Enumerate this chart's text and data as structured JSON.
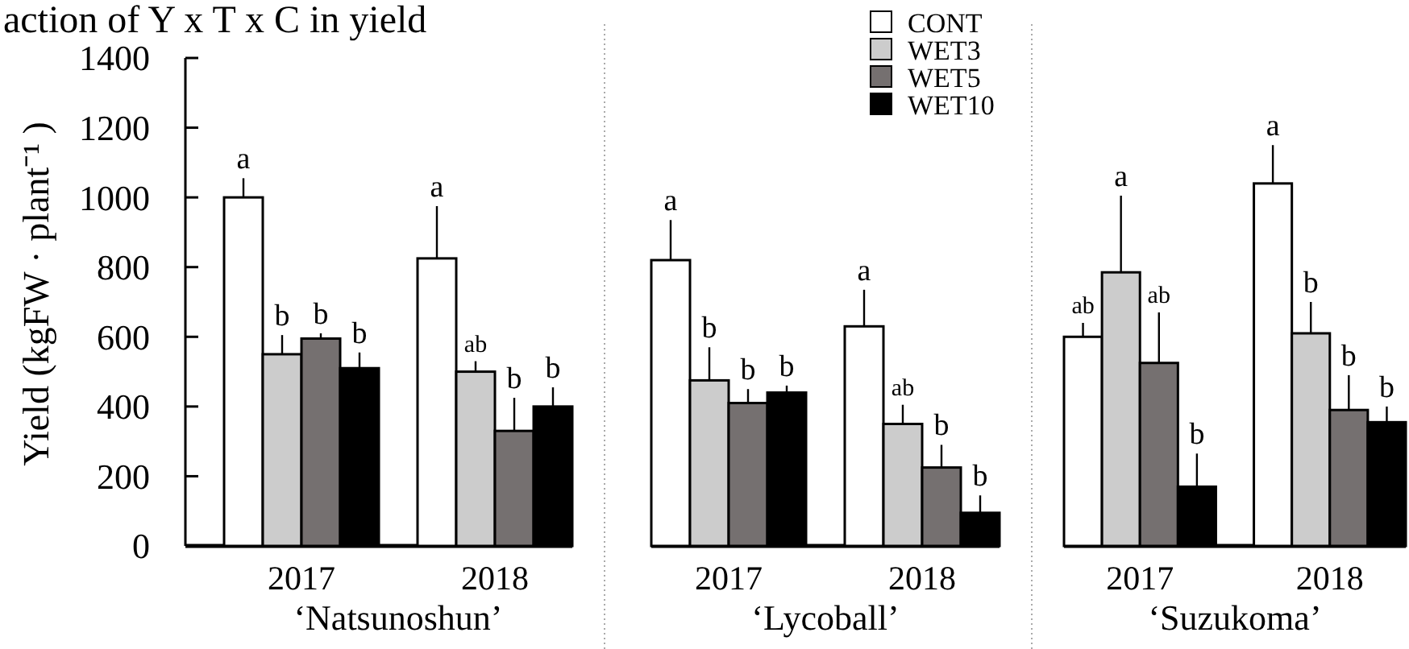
{
  "chart_data": [
    {
      "type": "bar",
      "title": "action of Y x T x C in yield",
      "ylabel": "Yield (kgFW · plant⁻¹ )",
      "xlabel": "‘Natsunoshun’",
      "categories": [
        "2017",
        "2018"
      ],
      "ylim": [
        0,
        1400
      ],
      "yticks": [
        0,
        200,
        400,
        600,
        800,
        1000,
        1200,
        1400
      ],
      "series": [
        {
          "color": "#ffffff",
          "values": [
            1000,
            825
          ],
          "errors": [
            [
              1000,
              1055
            ],
            [
              825,
              975
            ]
          ],
          "value_labels": [
            "a",
            "a"
          ]
        },
        {
          "color": "#cccccc",
          "values": [
            550,
            500
          ],
          "errors": [
            [
              550,
              605
            ],
            [
              500,
              530
            ]
          ],
          "value_labels": [
            "b",
            "ab"
          ]
        },
        {
          "color": "#757070",
          "values": [
            595,
            330
          ],
          "errors": [
            [
              595,
              610
            ],
            [
              330,
              425
            ]
          ],
          "value_labels": [
            "b",
            "b"
          ]
        },
        {
          "color": "#000000",
          "values": [
            510,
            400
          ],
          "errors": [
            [
              510,
              555
            ],
            [
              400,
              455
            ]
          ],
          "value_labels": [
            "b",
            "b"
          ]
        }
      ]
    },
    {
      "type": "bar",
      "xlabel": "‘Lycoball’",
      "categories": [
        "2017",
        "2018"
      ],
      "ylim": [
        0,
        1400
      ],
      "tick_labels": "x",
      "legend": "top right",
      "series": [
        {
          "name": "CONT",
          "color": "#ffffff",
          "values": [
            820,
            630
          ],
          "errors": [
            [
              820,
              935
            ],
            [
              630,
              735
            ]
          ],
          "value_labels": [
            "a",
            "a"
          ]
        },
        {
          "name": "WET3",
          "color": "#cccccc",
          "values": [
            475,
            350
          ],
          "errors": [
            [
              475,
              570
            ],
            [
              350,
              405
            ]
          ],
          "value_labels": [
            "b",
            "ab"
          ]
        },
        {
          "name": "WET5",
          "color": "#757070",
          "values": [
            410,
            225
          ],
          "errors": [
            [
              410,
              450
            ],
            [
              225,
              290
            ]
          ],
          "value_labels": [
            "b",
            "b"
          ]
        },
        {
          "name": "WET10",
          "color": "#000000",
          "values": [
            440,
            95
          ],
          "errors": [
            [
              440,
              460
            ],
            [
              95,
              145
            ]
          ],
          "value_labels": [
            "b",
            "b"
          ]
        }
      ]
    },
    {
      "type": "bar",
      "xlabel": "‘Suzukoma’",
      "categories": [
        "2017",
        "2018"
      ],
      "ylim": [
        0,
        1400
      ],
      "tick_labels": "x",
      "series": [
        {
          "color": "#ffffff",
          "values": [
            600,
            1040
          ],
          "errors": [
            [
              600,
              640
            ],
            [
              1040,
              1150
            ]
          ],
          "value_labels": [
            "ab",
            "a"
          ]
        },
        {
          "color": "#cccccc",
          "values": [
            785,
            610
          ],
          "errors": [
            [
              785,
              1005
            ],
            [
              610,
              700
            ]
          ],
          "value_labels": [
            "a",
            "b"
          ]
        },
        {
          "color": "#757070",
          "values": [
            525,
            390
          ],
          "errors": [
            [
              525,
              670
            ],
            [
              390,
              490
            ]
          ],
          "value_labels": [
            "ab",
            "b"
          ]
        },
        {
          "color": "#000000",
          "values": [
            170,
            355
          ],
          "errors": [
            [
              170,
              265
            ],
            [
              355,
              400
            ]
          ],
          "value_labels": [
            "b",
            "b"
          ]
        }
      ]
    }
  ]
}
